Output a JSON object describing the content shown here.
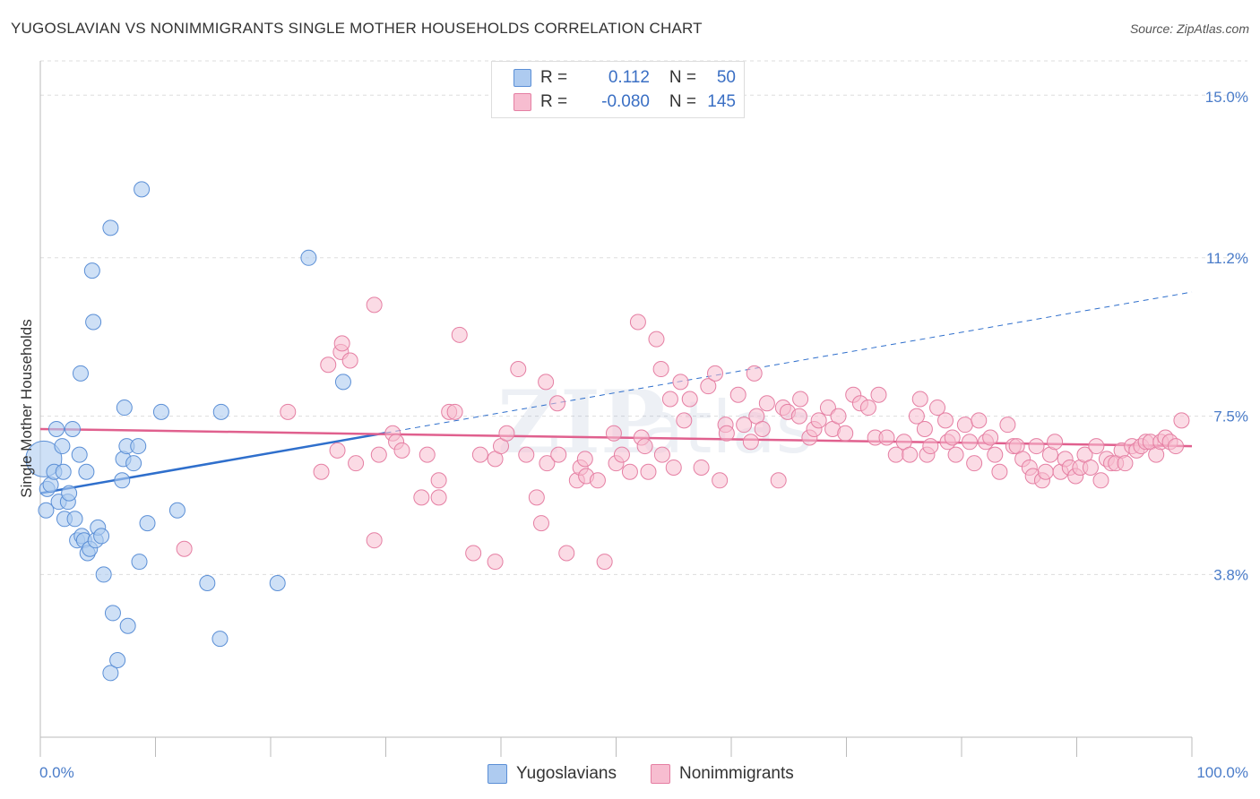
{
  "title": "YUGOSLAVIAN VS NONIMMIGRANTS SINGLE MOTHER HOUSEHOLDS CORRELATION CHART",
  "source": "Source: ZipAtlas.com",
  "legend": {
    "rows": [
      {
        "r_label": "R =",
        "r_value": "0.112",
        "n_label": "N =",
        "n_value": "50"
      },
      {
        "r_label": "R =",
        "r_value": "-0.080",
        "n_label": "N =",
        "n_value": "145"
      }
    ]
  },
  "colors": {
    "yugoslavians_fill": "#aecbf0",
    "yugoslavians_stroke": "#5b8fd6",
    "yugoslavians_line": "#2f6fcc",
    "nonimmigrants_fill": "#f7bdd0",
    "nonimmigrants_stroke": "#e57fa3",
    "nonimmigrants_line": "#e0608e",
    "tick_text": "#4a7cc9",
    "grid": "#dddddd"
  },
  "chart_data": {
    "type": "scatter",
    "title": "YUGOSLAVIAN VS NONIMMIGRANTS SINGLE MOTHER HOUSEHOLDS CORRELATION CHART",
    "xlabel": "",
    "ylabel": "Single Mother Households",
    "x_tick_labels": [
      "0.0%",
      "100.0%"
    ],
    "y_tick_labels": [
      "3.8%",
      "7.5%",
      "11.2%",
      "15.0%"
    ],
    "y_ticks": [
      3.8,
      7.5,
      11.2,
      15.0
    ],
    "xlim": [
      0,
      100
    ],
    "ylim": [
      0,
      15.8
    ],
    "grid": true,
    "legend_position": "top-center",
    "series": [
      {
        "name": "Yugoslavians",
        "r": 0.112,
        "n": 50,
        "trend": {
          "x0": 0,
          "y0": 5.7,
          "x1": 100,
          "y1": 10.4,
          "solid_until": 30
        },
        "points": [
          [
            0.3,
            6.5
          ],
          [
            0.5,
            5.3
          ],
          [
            0.6,
            5.8
          ],
          [
            0.9,
            5.9
          ],
          [
            1.2,
            6.2
          ],
          [
            1.4,
            7.2
          ],
          [
            1.6,
            5.5
          ],
          [
            1.9,
            6.8
          ],
          [
            2.0,
            6.2
          ],
          [
            2.1,
            5.1
          ],
          [
            2.4,
            5.5
          ],
          [
            2.5,
            5.7
          ],
          [
            2.8,
            7.2
          ],
          [
            3.0,
            5.1
          ],
          [
            3.2,
            4.6
          ],
          [
            3.4,
            6.6
          ],
          [
            3.5,
            8.5
          ],
          [
            3.6,
            4.7
          ],
          [
            3.8,
            4.6
          ],
          [
            4.0,
            6.2
          ],
          [
            4.1,
            4.3
          ],
          [
            4.3,
            4.4
          ],
          [
            4.5,
            10.9
          ],
          [
            4.6,
            9.7
          ],
          [
            4.8,
            4.6
          ],
          [
            5.0,
            4.9
          ],
          [
            5.3,
            4.7
          ],
          [
            5.5,
            3.8
          ],
          [
            6.1,
            11.9
          ],
          [
            6.3,
            2.9
          ],
          [
            7.1,
            6.0
          ],
          [
            7.2,
            6.5
          ],
          [
            7.3,
            7.7
          ],
          [
            7.5,
            6.8
          ],
          [
            7.6,
            2.6
          ],
          [
            6.1,
            1.5
          ],
          [
            6.7,
            1.8
          ],
          [
            8.1,
            6.4
          ],
          [
            8.5,
            6.8
          ],
          [
            8.6,
            4.1
          ],
          [
            8.8,
            12.8
          ],
          [
            9.3,
            5.0
          ],
          [
            10.5,
            7.6
          ],
          [
            11.9,
            5.3
          ],
          [
            14.5,
            3.6
          ],
          [
            15.6,
            2.3
          ],
          [
            15.7,
            7.6
          ],
          [
            20.6,
            3.6
          ],
          [
            23.3,
            11.2
          ],
          [
            26.3,
            8.3
          ]
        ]
      },
      {
        "name": "Nonimmigrants",
        "r": -0.08,
        "n": 145,
        "trend": {
          "x0": 0,
          "y0": 7.2,
          "x1": 100,
          "y1": 6.8
        },
        "points": [
          [
            12.5,
            4.4
          ],
          [
            21.5,
            7.6
          ],
          [
            24.4,
            6.2
          ],
          [
            25.0,
            8.7
          ],
          [
            25.8,
            6.7
          ],
          [
            26.1,
            9.0
          ],
          [
            26.2,
            9.2
          ],
          [
            26.9,
            8.8
          ],
          [
            27.4,
            6.4
          ],
          [
            29.0,
            10.1
          ],
          [
            29.0,
            4.6
          ],
          [
            29.4,
            6.6
          ],
          [
            30.6,
            7.1
          ],
          [
            30.9,
            6.9
          ],
          [
            31.4,
            6.7
          ],
          [
            33.1,
            5.6
          ],
          [
            33.6,
            6.6
          ],
          [
            34.6,
            6.0
          ],
          [
            34.6,
            5.6
          ],
          [
            35.5,
            7.6
          ],
          [
            36.0,
            7.6
          ],
          [
            36.4,
            9.4
          ],
          [
            37.6,
            4.3
          ],
          [
            38.2,
            6.6
          ],
          [
            39.5,
            6.5
          ],
          [
            39.5,
            4.1
          ],
          [
            40.0,
            6.8
          ],
          [
            40.5,
            7.1
          ],
          [
            41.5,
            8.6
          ],
          [
            42.2,
            6.6
          ],
          [
            43.1,
            5.6
          ],
          [
            43.5,
            5.0
          ],
          [
            43.9,
            8.3
          ],
          [
            44.0,
            6.4
          ],
          [
            44.9,
            7.8
          ],
          [
            45.0,
            6.6
          ],
          [
            45.7,
            4.3
          ],
          [
            46.6,
            6.0
          ],
          [
            46.9,
            6.3
          ],
          [
            47.3,
            6.5
          ],
          [
            47.4,
            6.1
          ],
          [
            48.4,
            6.0
          ],
          [
            49.0,
            4.1
          ],
          [
            49.8,
            7.1
          ],
          [
            50.0,
            6.4
          ],
          [
            50.5,
            6.6
          ],
          [
            51.2,
            6.2
          ],
          [
            51.9,
            9.7
          ],
          [
            52.2,
            7.0
          ],
          [
            52.5,
            6.8
          ],
          [
            52.8,
            6.2
          ],
          [
            53.5,
            9.3
          ],
          [
            53.9,
            8.6
          ],
          [
            54.0,
            6.6
          ],
          [
            54.7,
            7.9
          ],
          [
            55.0,
            6.3
          ],
          [
            55.6,
            8.3
          ],
          [
            55.9,
            7.4
          ],
          [
            56.4,
            7.9
          ],
          [
            57.4,
            6.3
          ],
          [
            58.0,
            8.2
          ],
          [
            58.6,
            8.5
          ],
          [
            59.0,
            6.0
          ],
          [
            59.5,
            7.3
          ],
          [
            59.6,
            7.1
          ],
          [
            60.6,
            8.0
          ],
          [
            61.1,
            7.3
          ],
          [
            61.7,
            6.9
          ],
          [
            62.0,
            8.5
          ],
          [
            62.2,
            7.5
          ],
          [
            62.7,
            7.2
          ],
          [
            63.1,
            7.8
          ],
          [
            64.1,
            6.0
          ],
          [
            64.5,
            7.7
          ],
          [
            64.9,
            7.6
          ],
          [
            65.9,
            7.5
          ],
          [
            66.0,
            7.9
          ],
          [
            66.8,
            7.0
          ],
          [
            67.2,
            7.2
          ],
          [
            67.6,
            7.4
          ],
          [
            68.4,
            7.7
          ],
          [
            68.8,
            7.2
          ],
          [
            69.3,
            7.5
          ],
          [
            69.9,
            7.1
          ],
          [
            70.6,
            8.0
          ],
          [
            71.2,
            7.8
          ],
          [
            71.9,
            7.7
          ],
          [
            72.5,
            7.0
          ],
          [
            72.8,
            8.0
          ],
          [
            73.5,
            7.0
          ],
          [
            74.3,
            6.6
          ],
          [
            75.0,
            6.9
          ],
          [
            75.5,
            6.6
          ],
          [
            76.1,
            7.5
          ],
          [
            76.4,
            7.9
          ],
          [
            76.8,
            7.2
          ],
          [
            77.0,
            6.6
          ],
          [
            77.3,
            6.8
          ],
          [
            77.9,
            7.7
          ],
          [
            78.6,
            7.4
          ],
          [
            78.8,
            6.9
          ],
          [
            79.2,
            7.0
          ],
          [
            79.5,
            6.6
          ],
          [
            80.3,
            7.3
          ],
          [
            80.7,
            6.9
          ],
          [
            81.1,
            6.4
          ],
          [
            81.5,
            7.4
          ],
          [
            82.1,
            6.9
          ],
          [
            82.5,
            7.0
          ],
          [
            82.9,
            6.6
          ],
          [
            83.3,
            6.2
          ],
          [
            84.0,
            7.3
          ],
          [
            84.5,
            6.8
          ],
          [
            84.8,
            6.8
          ],
          [
            85.3,
            6.5
          ],
          [
            85.9,
            6.3
          ],
          [
            86.2,
            6.1
          ],
          [
            86.5,
            6.8
          ],
          [
            87.0,
            6.0
          ],
          [
            87.3,
            6.2
          ],
          [
            87.7,
            6.6
          ],
          [
            88.1,
            6.9
          ],
          [
            88.6,
            6.2
          ],
          [
            89.0,
            6.5
          ],
          [
            89.4,
            6.3
          ],
          [
            89.9,
            6.1
          ],
          [
            90.3,
            6.3
          ],
          [
            90.7,
            6.6
          ],
          [
            91.2,
            6.3
          ],
          [
            91.7,
            6.8
          ],
          [
            92.1,
            6.0
          ],
          [
            92.6,
            6.5
          ],
          [
            93.0,
            6.4
          ],
          [
            93.4,
            6.4
          ],
          [
            93.9,
            6.7
          ],
          [
            94.2,
            6.4
          ],
          [
            94.8,
            6.8
          ],
          [
            95.2,
            6.7
          ],
          [
            95.6,
            6.8
          ],
          [
            96.0,
            6.9
          ],
          [
            96.4,
            6.9
          ],
          [
            96.9,
            6.6
          ],
          [
            97.3,
            6.9
          ],
          [
            97.7,
            7.0
          ],
          [
            98.1,
            6.9
          ],
          [
            98.6,
            6.8
          ],
          [
            99.1,
            7.4
          ]
        ]
      }
    ]
  }
}
